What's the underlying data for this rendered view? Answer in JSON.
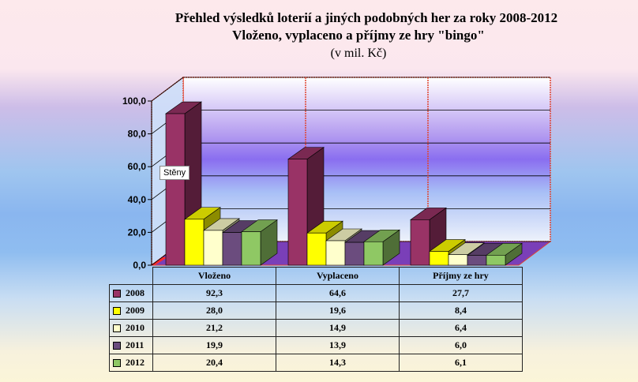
{
  "title": {
    "line1": "Přehled výsledků loterií a jiných podobných her za roky 2008-2012",
    "line2": "Vloženo, vyplaceno a příjmy ze hry \"bingo\"",
    "line3": "(v mil. Kč)"
  },
  "tooltip": "Stěny",
  "chart_data": {
    "type": "bar",
    "style": "3d-clustered",
    "categories": [
      "Vloženo",
      "Vyplaceno",
      "Příjmy ze hry"
    ],
    "series": [
      {
        "name": "2008",
        "color": "#993366",
        "values": [
          92.3,
          64.6,
          27.7
        ],
        "labels": [
          "92,3",
          "64,6",
          "27,7"
        ]
      },
      {
        "name": "2009",
        "color": "#ffff00",
        "values": [
          28.0,
          19.6,
          8.4
        ],
        "labels": [
          "28,0",
          "19,6",
          "8,4"
        ]
      },
      {
        "name": "2010",
        "color": "#ffffcc",
        "values": [
          21.2,
          14.9,
          6.4
        ],
        "labels": [
          "21,2",
          "14,9",
          "6,4"
        ]
      },
      {
        "name": "2011",
        "color": "#6b4c7e",
        "values": [
          19.9,
          13.9,
          6.0
        ],
        "labels": [
          "19,9",
          "13,9",
          "6,0"
        ]
      },
      {
        "name": "2012",
        "color": "#8fc864",
        "values": [
          20.4,
          14.3,
          6.1
        ],
        "labels": [
          "20,4",
          "14,3",
          "6,1"
        ]
      }
    ],
    "yticks": [
      "0,0",
      "20,0",
      "40,0",
      "60,0",
      "80,0",
      "100,0"
    ],
    "ylim": [
      0,
      100
    ],
    "legend": "data-table",
    "grid": true
  }
}
